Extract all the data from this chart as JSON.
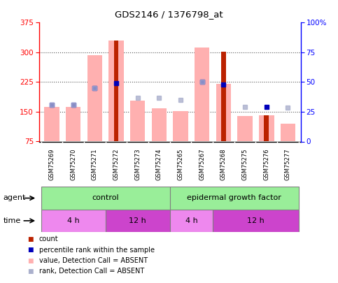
{
  "title": "GDS2146 / 1376798_at",
  "samples": [
    "GSM75269",
    "GSM75270",
    "GSM75271",
    "GSM75272",
    "GSM75273",
    "GSM75274",
    "GSM75265",
    "GSM75267",
    "GSM75268",
    "GSM75275",
    "GSM75276",
    "GSM75277"
  ],
  "ylim_left": [
    75,
    375
  ],
  "ylim_right": [
    0,
    100
  ],
  "yticks_left": [
    75,
    150,
    225,
    300,
    375
  ],
  "yticks_right": [
    0,
    25,
    50,
    75,
    100
  ],
  "ytick_labels_right": [
    "0",
    "25",
    "50",
    "75",
    "100%"
  ],
  "pink_bars": [
    163,
    163,
    293,
    330,
    178,
    158,
    152,
    313,
    220,
    140,
    141,
    120
  ],
  "red_bars": [
    0,
    0,
    0,
    330,
    0,
    0,
    0,
    0,
    302,
    0,
    141,
    0
  ],
  "blue_squares_y": [
    168,
    168,
    210,
    223,
    0,
    0,
    0,
    225,
    218,
    0,
    163,
    0
  ],
  "light_blue_squares_y": [
    168,
    168,
    210,
    0,
    185,
    185,
    180,
    225,
    0,
    163,
    0,
    160
  ],
  "agent_control_label": "control",
  "agent_egf_label": "epidermal growth factor",
  "time_4h_label": "4 h",
  "time_12h_label": "12 h",
  "bg_color": "#ffffff",
  "plot_bg_color": "#ffffff",
  "pink_color": "#ffb0b0",
  "red_color": "#bb2200",
  "blue_color": "#0000bb",
  "light_blue_color": "#aab0cc",
  "green_color": "#99ee99",
  "magenta_light": "#ee88ee",
  "magenta_dark": "#cc44cc",
  "grid_color": "#555555",
  "xaxis_bg": "#cccccc",
  "legend_items": [
    "count",
    "percentile rank within the sample",
    "value, Detection Call = ABSENT",
    "rank, Detection Call = ABSENT"
  ]
}
